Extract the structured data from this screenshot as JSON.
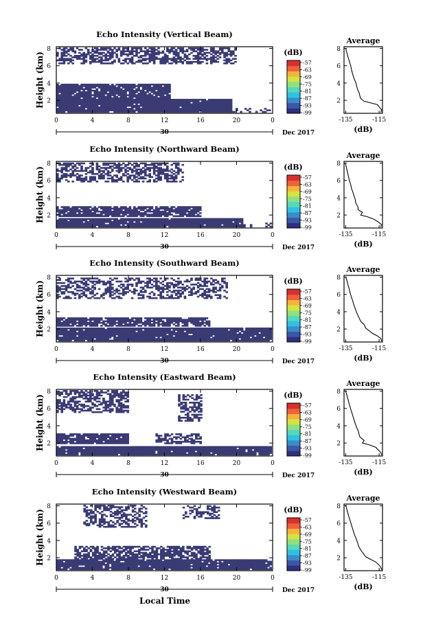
{
  "colors": {
    "echo": "#3a3a74",
    "axis": "#000000",
    "colorbar": [
      "#2e2f7f",
      "#3a57a8",
      "#3a8ccb",
      "#2ec1e6",
      "#57d8b8",
      "#8fe07f",
      "#d6e43f",
      "#f7b23a",
      "#f0603a",
      "#d8302a"
    ]
  },
  "chart_data": [
    {
      "type": "heatmap",
      "title": "Echo Intensity (Vertical Beam)",
      "ylabel": "Height (km)",
      "x_ticks": [
        "0",
        "4",
        "8",
        "12",
        "16",
        "20",
        "0"
      ],
      "y_ticks": [
        "2",
        "4",
        "6",
        "8"
      ],
      "date_day": "30",
      "date_month_year": "Dec 2017",
      "xlim_hours": [
        0,
        24
      ],
      "ylim_km": [
        0.5,
        8.2
      ],
      "colorbar": {
        "unit": "(dB)",
        "labels": [
          "-57",
          "-63",
          "-69",
          "-75",
          "-81",
          "-87",
          "-93",
          "-99"
        ]
      },
      "layers": [
        {
          "h_start": 0,
          "h_end": 19.4,
          "km_low": 0.6,
          "km_high": 2.0,
          "density": 0.97
        },
        {
          "h_start": 0,
          "h_end": 12.5,
          "km_low": 2.0,
          "km_high": 3.9,
          "density": 0.9
        },
        {
          "h_start": 0,
          "h_end": 19.8,
          "km_low": 6.2,
          "km_high": 8.0,
          "density": 0.6
        },
        {
          "h_start": 19.4,
          "h_end": 24,
          "km_low": 0.6,
          "km_high": 1.0,
          "density": 0.3
        }
      ],
      "average": {
        "title": "Average",
        "xlabel": "(dB)",
        "x_ticks": [
          "-135",
          "-115"
        ],
        "y_ticks": [
          "2",
          "4",
          "6",
          "8"
        ],
        "xlim": [
          -136,
          -113
        ],
        "profile": [
          [
            0.6,
            -114
          ],
          [
            0.9,
            -113.5
          ],
          [
            1.2,
            -114.8
          ],
          [
            1.5,
            -116
          ],
          [
            1.7,
            -120
          ],
          [
            1.9,
            -124
          ],
          [
            2.2,
            -126
          ],
          [
            2.5,
            -126.5
          ],
          [
            2.9,
            -127
          ],
          [
            3.3,
            -128
          ],
          [
            3.7,
            -128.5
          ],
          [
            4.1,
            -129
          ],
          [
            4.5,
            -130
          ],
          [
            5.0,
            -130.8
          ],
          [
            5.5,
            -131.5
          ],
          [
            6.0,
            -132
          ],
          [
            6.5,
            -132.8
          ],
          [
            7.0,
            -133.6
          ],
          [
            7.5,
            -134.3
          ],
          [
            8.0,
            -135
          ]
        ]
      }
    },
    {
      "type": "heatmap",
      "title": "Echo Intensity (Northward Beam)",
      "ylabel": "Height (km)",
      "x_ticks": [
        "0",
        "4",
        "8",
        "12",
        "16",
        "20",
        "0"
      ],
      "y_ticks": [
        "2",
        "4",
        "6",
        "8"
      ],
      "date_day": "30",
      "date_month_year": "Dec 2017",
      "xlim_hours": [
        0,
        24
      ],
      "ylim_km": [
        0.5,
        8.2
      ],
      "colorbar": {
        "unit": "(dB)",
        "labels": [
          "-57",
          "-63",
          "-69",
          "-75",
          "-81",
          "-87",
          "-93",
          "-99"
        ]
      },
      "layers": [
        {
          "h_start": 0,
          "h_end": 20.5,
          "km_low": 0.6,
          "km_high": 1.5,
          "density": 0.97
        },
        {
          "h_start": 0,
          "h_end": 16,
          "km_low": 1.8,
          "km_high": 3.0,
          "density": 0.85
        },
        {
          "h_start": 0,
          "h_end": 14,
          "km_low": 5.8,
          "km_high": 8.0,
          "density": 0.55
        },
        {
          "h_start": 20.5,
          "h_end": 24,
          "km_low": 0.6,
          "km_high": 1.0,
          "density": 0.25
        }
      ],
      "average": {
        "title": "Average",
        "xlabel": "(dB)",
        "x_ticks": [
          "-135",
          "-115"
        ],
        "y_ticks": [
          "2",
          "4",
          "6",
          "8"
        ],
        "xlim": [
          -136,
          -113
        ],
        "profile": [
          [
            0.6,
            -114
          ],
          [
            0.9,
            -113.6
          ],
          [
            1.2,
            -115.5
          ],
          [
            1.5,
            -118
          ],
          [
            1.8,
            -122
          ],
          [
            2.0,
            -126
          ],
          [
            2.3,
            -125
          ],
          [
            2.6,
            -127.5
          ],
          [
            3.0,
            -127.8
          ],
          [
            3.4,
            -129
          ],
          [
            3.8,
            -129.3
          ],
          [
            4.2,
            -130
          ],
          [
            4.6,
            -130.6
          ],
          [
            5.0,
            -131.4
          ],
          [
            5.5,
            -132
          ],
          [
            6.0,
            -132.8
          ],
          [
            6.5,
            -133.4
          ],
          [
            7.0,
            -134
          ],
          [
            7.5,
            -134.6
          ],
          [
            8.0,
            -135.3
          ]
        ]
      }
    },
    {
      "type": "heatmap",
      "title": "Echo Intensity (Southward Beam)",
      "ylabel": "Height (km)",
      "x_ticks": [
        "0",
        "4",
        "8",
        "12",
        "16",
        "20",
        "0"
      ],
      "y_ticks": [
        "2",
        "4",
        "6",
        "8"
      ],
      "date_day": "30",
      "date_month_year": "Dec 2017",
      "xlim_hours": [
        0,
        24
      ],
      "ylim_km": [
        0.5,
        8.2
      ],
      "colorbar": {
        "unit": "(dB)",
        "labels": [
          "-57",
          "-63",
          "-69",
          "-75",
          "-81",
          "-87",
          "-93",
          "-99"
        ]
      },
      "layers": [
        {
          "h_start": 0,
          "h_end": 24,
          "km_low": 0.6,
          "km_high": 2.0,
          "density": 0.95
        },
        {
          "h_start": 0,
          "h_end": 17,
          "km_low": 2.3,
          "km_high": 3.3,
          "density": 0.8
        },
        {
          "h_start": 0,
          "h_end": 19,
          "km_low": 5.5,
          "km_high": 7.8,
          "density": 0.45
        }
      ],
      "average": {
        "title": "Average",
        "xlabel": "(dB)",
        "x_ticks": [
          "-135",
          "-115"
        ],
        "y_ticks": [
          "2",
          "4",
          "6",
          "8"
        ],
        "xlim": [
          -136,
          -113
        ],
        "profile": [
          [
            0.6,
            -113.5
          ],
          [
            0.9,
            -114
          ],
          [
            1.2,
            -116
          ],
          [
            1.5,
            -119
          ],
          [
            1.8,
            -121
          ],
          [
            2.1,
            -123
          ],
          [
            2.5,
            -124
          ],
          [
            2.9,
            -126
          ],
          [
            3.3,
            -127
          ],
          [
            3.7,
            -128
          ],
          [
            4.2,
            -129
          ],
          [
            4.7,
            -130
          ],
          [
            5.2,
            -130.7
          ],
          [
            5.7,
            -131.6
          ],
          [
            6.2,
            -132.4
          ],
          [
            6.7,
            -133
          ],
          [
            7.2,
            -133.8
          ],
          [
            7.7,
            -134.4
          ],
          [
            8.0,
            -135
          ]
        ]
      }
    },
    {
      "type": "heatmap",
      "title": "Echo Intensity (Eastward Beam)",
      "ylabel": "Height (km)",
      "x_ticks": [
        "0",
        "4",
        "8",
        "12",
        "16",
        "20",
        "0"
      ],
      "y_ticks": [
        "2",
        "4",
        "6",
        "8"
      ],
      "date_day": "30",
      "date_month_year": "Dec 2017",
      "xlim_hours": [
        0,
        24
      ],
      "ylim_km": [
        0.5,
        8.2
      ],
      "colorbar": {
        "unit": "(dB)",
        "labels": [
          "-57",
          "-63",
          "-69",
          "-75",
          "-81",
          "-87",
          "-93",
          "-99"
        ]
      },
      "layers": [
        {
          "h_start": 0,
          "h_end": 24,
          "km_low": 0.6,
          "km_high": 1.5,
          "density": 0.95
        },
        {
          "h_start": 0,
          "h_end": 8,
          "km_low": 1.9,
          "km_high": 3.0,
          "density": 0.9
        },
        {
          "h_start": 11,
          "h_end": 16,
          "km_low": 1.9,
          "km_high": 3.0,
          "density": 0.6
        },
        {
          "h_start": 0,
          "h_end": 8,
          "km_low": 5.5,
          "km_high": 8.0,
          "density": 0.6
        },
        {
          "h_start": 13.5,
          "h_end": 16,
          "km_low": 4.5,
          "km_high": 7.5,
          "density": 0.55
        }
      ],
      "average": {
        "title": "Average",
        "xlabel": "(dB)",
        "x_ticks": [
          "-135",
          "-115"
        ],
        "y_ticks": [
          "2",
          "4",
          "6",
          "8"
        ],
        "xlim": [
          -136,
          -113
        ],
        "profile": [
          [
            0.6,
            -113.5
          ],
          [
            0.9,
            -114
          ],
          [
            1.2,
            -115.5
          ],
          [
            1.5,
            -117
          ],
          [
            1.8,
            -121
          ],
          [
            2.0,
            -125
          ],
          [
            2.3,
            -124
          ],
          [
            2.7,
            -126.5
          ],
          [
            3.0,
            -127
          ],
          [
            3.4,
            -127.5
          ],
          [
            3.8,
            -128.5
          ],
          [
            4.3,
            -129.4
          ],
          [
            4.8,
            -130.2
          ],
          [
            5.3,
            -131
          ],
          [
            5.8,
            -131.8
          ],
          [
            6.3,
            -132.6
          ],
          [
            6.8,
            -133.3
          ],
          [
            7.3,
            -134
          ],
          [
            7.8,
            -134.7
          ],
          [
            8.1,
            -135.2
          ]
        ]
      }
    },
    {
      "type": "heatmap",
      "title": "Echo Intensity (Westward Beam)",
      "ylabel": "Height (km)",
      "x_ticks": [
        "0",
        "4",
        "8",
        "12",
        "16",
        "20",
        "0"
      ],
      "y_ticks": [
        "2",
        "4",
        "6",
        "8"
      ],
      "date_day": "30",
      "date_month_year": "Dec 2017",
      "xlim_hours": [
        0,
        24
      ],
      "ylim_km": [
        0.5,
        8.2
      ],
      "colorbar": {
        "unit": "(dB)",
        "labels": [
          "-57",
          "-63",
          "-69",
          "-75",
          "-81",
          "-87",
          "-93",
          "-99"
        ]
      },
      "layers": [
        {
          "h_start": 0,
          "h_end": 24,
          "km_low": 0.6,
          "km_high": 1.8,
          "density": 0.95
        },
        {
          "h_start": 2,
          "h_end": 17,
          "km_low": 1.8,
          "km_high": 3.3,
          "density": 0.7
        },
        {
          "h_start": 3,
          "h_end": 10,
          "km_low": 5.5,
          "km_high": 8.0,
          "density": 0.5
        },
        {
          "h_start": 14,
          "h_end": 18,
          "km_low": 6.5,
          "km_high": 8.0,
          "density": 0.45
        }
      ],
      "average": {
        "title": "Average",
        "xlabel": "(dB)",
        "x_ticks": [
          "-135",
          "-115"
        ],
        "y_ticks": [
          "2",
          "4",
          "6",
          "8"
        ],
        "xlim": [
          -136,
          -113
        ],
        "profile": [
          [
            0.6,
            -113.5
          ],
          [
            0.9,
            -114
          ],
          [
            1.2,
            -115.3
          ],
          [
            1.5,
            -117
          ],
          [
            1.8,
            -120
          ],
          [
            2.1,
            -123
          ],
          [
            2.5,
            -124.5
          ],
          [
            2.9,
            -126
          ],
          [
            3.3,
            -127.2
          ],
          [
            3.8,
            -128
          ],
          [
            4.3,
            -129
          ],
          [
            4.8,
            -130
          ],
          [
            5.3,
            -130.8
          ],
          [
            5.8,
            -131.6
          ],
          [
            6.3,
            -132.4
          ],
          [
            6.8,
            -133.2
          ],
          [
            7.3,
            -133.9
          ],
          [
            7.8,
            -134.6
          ],
          [
            8.1,
            -135
          ]
        ]
      }
    }
  ],
  "footer": {
    "xlabel": "Local Time"
  }
}
